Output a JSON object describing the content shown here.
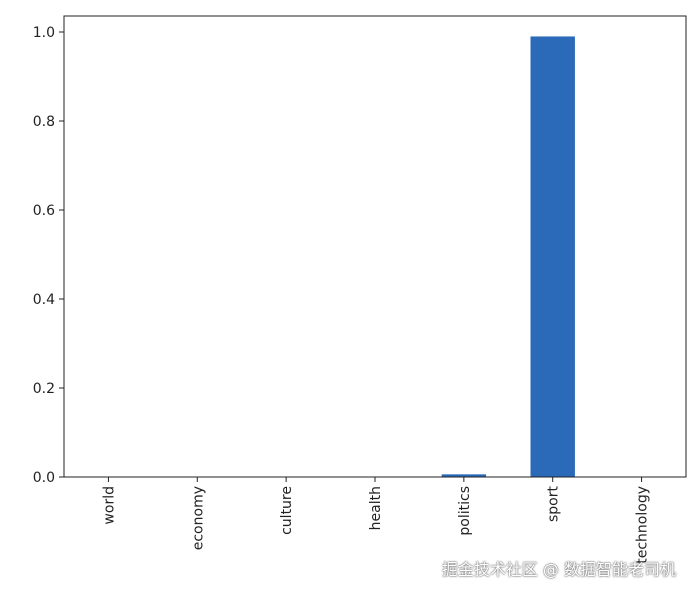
{
  "chart_data": {
    "type": "bar",
    "categories": [
      "world",
      "economy",
      "culture",
      "health",
      "politics",
      "sport",
      "technology"
    ],
    "values": [
      0.0,
      0.0,
      0.0,
      0.0,
      0.006,
      0.99,
      0.0
    ],
    "title": "",
    "xlabel": "",
    "ylabel": "",
    "ylim": [
      0,
      1.04
    ],
    "yticks": [
      "0.0",
      "0.2",
      "0.4",
      "0.6",
      "0.8",
      "1.0"
    ],
    "bar_color": "#2a6ab8",
    "grid": false,
    "xtick_rotation": 90
  },
  "watermark": "掘金技术社区 @ 数据智能老司机"
}
